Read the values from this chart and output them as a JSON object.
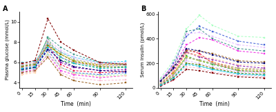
{
  "time_points": [
    0,
    15,
    30,
    45,
    60,
    90,
    120
  ],
  "panel_A_title": "A",
  "panel_B_title": "B",
  "ylabel_A": "Plasma glucose (mmol/L)",
  "ylabel_B": "Serum insulin (pmol/L)",
  "xlabel": "Time  (min)",
  "ylim_A": [
    3.5,
    11.0
  ],
  "ylim_B": [
    0,
    620
  ],
  "yticks_A": [
    4,
    6,
    8,
    10
  ],
  "yticks_B": [
    0,
    200,
    400,
    600
  ],
  "glucose_series": [
    [
      5.5,
      5.7,
      7.8,
      5.8,
      5.2,
      5.0,
      5.1
    ],
    [
      5.6,
      5.8,
      8.4,
      6.2,
      5.9,
      5.5,
      5.6
    ],
    [
      5.2,
      5.5,
      7.2,
      5.5,
      5.0,
      4.8,
      5.0
    ],
    [
      5.9,
      6.0,
      8.0,
      6.5,
      6.0,
      5.8,
      5.9
    ],
    [
      5.3,
      5.5,
      7.5,
      6.0,
      5.5,
      5.2,
      5.3
    ],
    [
      6.0,
      6.1,
      7.8,
      7.0,
      6.5,
      6.0,
      6.1
    ],
    [
      5.1,
      5.3,
      6.8,
      5.2,
      4.8,
      4.5,
      4.7
    ],
    [
      5.7,
      5.9,
      7.6,
      6.8,
      6.2,
      5.7,
      5.8
    ],
    [
      4.9,
      5.1,
      6.5,
      5.0,
      4.5,
      4.2,
      4.3
    ],
    [
      5.4,
      5.6,
      8.5,
      7.5,
      6.8,
      6.0,
      5.8
    ],
    [
      5.8,
      6.0,
      7.4,
      6.5,
      6.0,
      5.6,
      5.7
    ],
    [
      5.0,
      5.2,
      6.5,
      4.8,
      4.2,
      3.8,
      4.0
    ],
    [
      5.5,
      5.7,
      8.2,
      7.2,
      6.5,
      5.9,
      6.0
    ],
    [
      5.9,
      6.2,
      10.3,
      8.0,
      7.2,
      6.0,
      5.8
    ],
    [
      5.2,
      5.4,
      6.8,
      5.5,
      5.0,
      4.7,
      4.8
    ],
    [
      5.6,
      5.8,
      7.7,
      6.8,
      6.1,
      5.6,
      5.5
    ],
    [
      4.8,
      5.0,
      7.0,
      5.5,
      4.9,
      4.6,
      4.7
    ],
    [
      5.3,
      5.5,
      7.3,
      6.2,
      5.6,
      5.2,
      5.1
    ],
    [
      5.7,
      5.9,
      8.0,
      7.0,
      6.3,
      5.8,
      5.7
    ],
    [
      5.4,
      5.6,
      7.5,
      6.5,
      5.9,
      5.4,
      5.5
    ]
  ],
  "insulin_series": [
    [
      30,
      130,
      310,
      280,
      200,
      140,
      130
    ],
    [
      20,
      100,
      260,
      220,
      190,
      140,
      130
    ],
    [
      50,
      200,
      420,
      500,
      460,
      380,
      350
    ],
    [
      25,
      110,
      290,
      260,
      210,
      160,
      150
    ],
    [
      60,
      150,
      290,
      250,
      230,
      180,
      160
    ],
    [
      15,
      80,
      200,
      180,
      150,
      110,
      100
    ],
    [
      70,
      180,
      350,
      410,
      390,
      300,
      280
    ],
    [
      40,
      120,
      250,
      220,
      200,
      150,
      140
    ],
    [
      10,
      60,
      170,
      160,
      130,
      100,
      90
    ],
    [
      45,
      160,
      460,
      480,
      400,
      320,
      300
    ],
    [
      35,
      95,
      220,
      200,
      170,
      130,
      120
    ],
    [
      55,
      170,
      300,
      300,
      280,
      220,
      210
    ],
    [
      65,
      190,
      440,
      450,
      420,
      350,
      330
    ],
    [
      15,
      65,
      150,
      140,
      120,
      90,
      80
    ],
    [
      80,
      220,
      480,
      590,
      510,
      420,
      410
    ],
    [
      25,
      85,
      200,
      190,
      160,
      120,
      110
    ],
    [
      45,
      140,
      280,
      260,
      240,
      190,
      180
    ],
    [
      55,
      160,
      320,
      300,
      270,
      210,
      200
    ],
    [
      30,
      105,
      240,
      230,
      200,
      160,
      150
    ],
    [
      20,
      75,
      190,
      175,
      150,
      115,
      105
    ]
  ],
  "colors": [
    "#e6194b",
    "#3cb44b",
    "#4363d8",
    "#f58231",
    "#911eb4",
    "#42d4f4",
    "#f032e6",
    "#bcbd22",
    "#fabed4",
    "#469990",
    "#dcbeff",
    "#9A6324",
    "#e6beff",
    "#800000",
    "#aaffc3",
    "#808000",
    "#ffd8b1",
    "#000075",
    "#a9a9a9",
    "#17becf"
  ],
  "background_color": "#ffffff"
}
